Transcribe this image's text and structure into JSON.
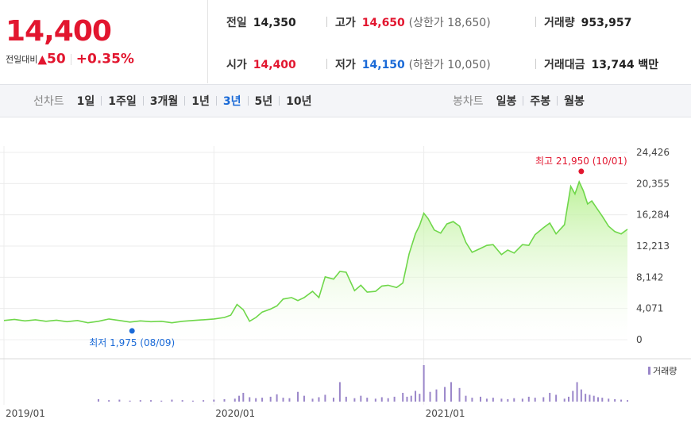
{
  "price": {
    "current": "14,400",
    "diff_label": "전일대비",
    "diff_arrow": "▲",
    "diff_value": "50",
    "diff_rate": "+0.35%"
  },
  "stats": {
    "prev_close_label": "전일",
    "prev_close": "14,350",
    "high_label": "고가",
    "high": "14,650",
    "upper_limit": "(상한가 18,650)",
    "volume_label": "거래량",
    "volume": "953,957",
    "open_label": "시가",
    "open": "14,400",
    "low_label": "저가",
    "low": "14,150",
    "lower_limit": "(하한가 10,050)",
    "amount_label": "거래대금",
    "amount": "13,744 백만"
  },
  "tabs": {
    "line_label": "선차트",
    "line_periods": [
      "1일",
      "1주일",
      "3개월",
      "1년",
      "3년",
      "5년",
      "10년"
    ],
    "line_active": "3년",
    "candle_label": "봉차트",
    "candle_periods": [
      "일봉",
      "주봉",
      "월봉"
    ]
  },
  "colors": {
    "up": "#e2162f",
    "down": "#1a6ad7",
    "line": "#6fd74a",
    "fill_top": "#b6f08f",
    "volume": "#9a86c9"
  },
  "chart_data": {
    "type": "area",
    "x_ticks": [
      {
        "label": "2019/01",
        "x": 2019.0
      },
      {
        "label": "2020/01",
        "x": 2020.0
      },
      {
        "label": "2021/01",
        "x": 2021.0
      }
    ],
    "xlim": [
      2019.0,
      2021.97
    ],
    "ylim": [
      0,
      24426
    ],
    "y_ticks": [
      0,
      4071,
      8142,
      12213,
      16284,
      20355,
      24426
    ],
    "y_tick_labels": [
      "0",
      "4,071",
      "8,142",
      "12,213",
      "16,284",
      "20,355",
      "24,426"
    ],
    "grid": true,
    "max_annotation": "최고 21,950 (10/01)",
    "max_point": {
      "x": 2021.75,
      "y": 21950
    },
    "min_annotation": "최저 1,975 (08/09)",
    "min_point": {
      "x": 2019.61,
      "y": 1975
    },
    "price_series": {
      "x": [
        2019.0,
        2019.05,
        2019.1,
        2019.15,
        2019.2,
        2019.25,
        2019.3,
        2019.35,
        2019.4,
        2019.45,
        2019.5,
        2019.55,
        2019.6,
        2019.65,
        2019.7,
        2019.75,
        2019.8,
        2019.85,
        2019.9,
        2019.95,
        2020.0,
        2020.05,
        2020.08,
        2020.11,
        2020.14,
        2020.17,
        2020.2,
        2020.23,
        2020.27,
        2020.3,
        2020.33,
        2020.37,
        2020.4,
        2020.43,
        2020.47,
        2020.5,
        2020.53,
        2020.57,
        2020.6,
        2020.63,
        2020.67,
        2020.7,
        2020.73,
        2020.77,
        2020.8,
        2020.83,
        2020.87,
        2020.9,
        2020.93,
        2020.96,
        2020.98,
        2021.0,
        2021.02,
        2021.05,
        2021.08,
        2021.11,
        2021.14,
        2021.17,
        2021.2,
        2021.23,
        2021.27,
        2021.3,
        2021.33,
        2021.37,
        2021.4,
        2021.43,
        2021.47,
        2021.5,
        2021.53,
        2021.57,
        2021.6,
        2021.63,
        2021.67,
        2021.7,
        2021.72,
        2021.74,
        2021.76,
        2021.78,
        2021.8,
        2021.82,
        2021.85,
        2021.88,
        2021.91,
        2021.94,
        2021.97
      ],
      "y": [
        2500,
        2650,
        2450,
        2600,
        2400,
        2550,
        2350,
        2500,
        2200,
        2400,
        2700,
        2500,
        2300,
        2450,
        2350,
        2400,
        2200,
        2400,
        2500,
        2600,
        2700,
        2900,
        3200,
        4600,
        3900,
        2400,
        2900,
        3600,
        4000,
        4400,
        5300,
        5500,
        5100,
        5500,
        6300,
        5500,
        8200,
        7900,
        8900,
        8800,
        6400,
        7100,
        6200,
        6300,
        7000,
        7100,
        6800,
        7400,
        11200,
        13800,
        14900,
        16500,
        15800,
        14300,
        13900,
        15100,
        15400,
        14800,
        12700,
        11400,
        11900,
        12300,
        12400,
        11100,
        11700,
        11300,
        12400,
        12300,
        13700,
        14600,
        15200,
        13800,
        15000,
        20000,
        19000,
        20600,
        19400,
        17700,
        18100,
        17300,
        16100,
        14800,
        14100,
        13800,
        14400
      ]
    },
    "volume_series": {
      "name": "거래량",
      "x": [
        2019.45,
        2019.5,
        2019.55,
        2019.6,
        2019.65,
        2019.7,
        2019.75,
        2019.8,
        2019.85,
        2019.9,
        2019.95,
        2020.0,
        2020.05,
        2020.1,
        2020.12,
        2020.14,
        2020.17,
        2020.2,
        2020.23,
        2020.27,
        2020.3,
        2020.33,
        2020.36,
        2020.4,
        2020.43,
        2020.47,
        2020.5,
        2020.53,
        2020.57,
        2020.6,
        2020.63,
        2020.67,
        2020.7,
        2020.73,
        2020.77,
        2020.8,
        2020.83,
        2020.86,
        2020.9,
        2020.92,
        2020.94,
        2020.96,
        2020.98,
        2021.0,
        2021.03,
        2021.06,
        2021.1,
        2021.13,
        2021.17,
        2021.2,
        2021.23,
        2021.27,
        2021.3,
        2021.33,
        2021.37,
        2021.4,
        2021.43,
        2021.47,
        2021.5,
        2021.53,
        2021.57,
        2021.6,
        2021.63,
        2021.67,
        2021.69,
        2021.71,
        2021.73,
        2021.75,
        2021.77,
        2021.79,
        2021.81,
        2021.83,
        2021.85,
        2021.88,
        2021.91,
        2021.94,
        2021.97
      ],
      "values": [
        5,
        3,
        4,
        2,
        3,
        3,
        2,
        4,
        3,
        2,
        3,
        4,
        5,
        6,
        12,
        18,
        9,
        7,
        8,
        10,
        15,
        8,
        7,
        20,
        12,
        6,
        9,
        14,
        8,
        40,
        10,
        7,
        12,
        8,
        6,
        9,
        7,
        10,
        18,
        10,
        12,
        22,
        16,
        75,
        20,
        25,
        30,
        40,
        28,
        12,
        8,
        10,
        6,
        8,
        6,
        5,
        7,
        6,
        10,
        8,
        9,
        18,
        14,
        6,
        10,
        22,
        40,
        25,
        16,
        14,
        12,
        9,
        8,
        6,
        5,
        4,
        3
      ]
    }
  }
}
